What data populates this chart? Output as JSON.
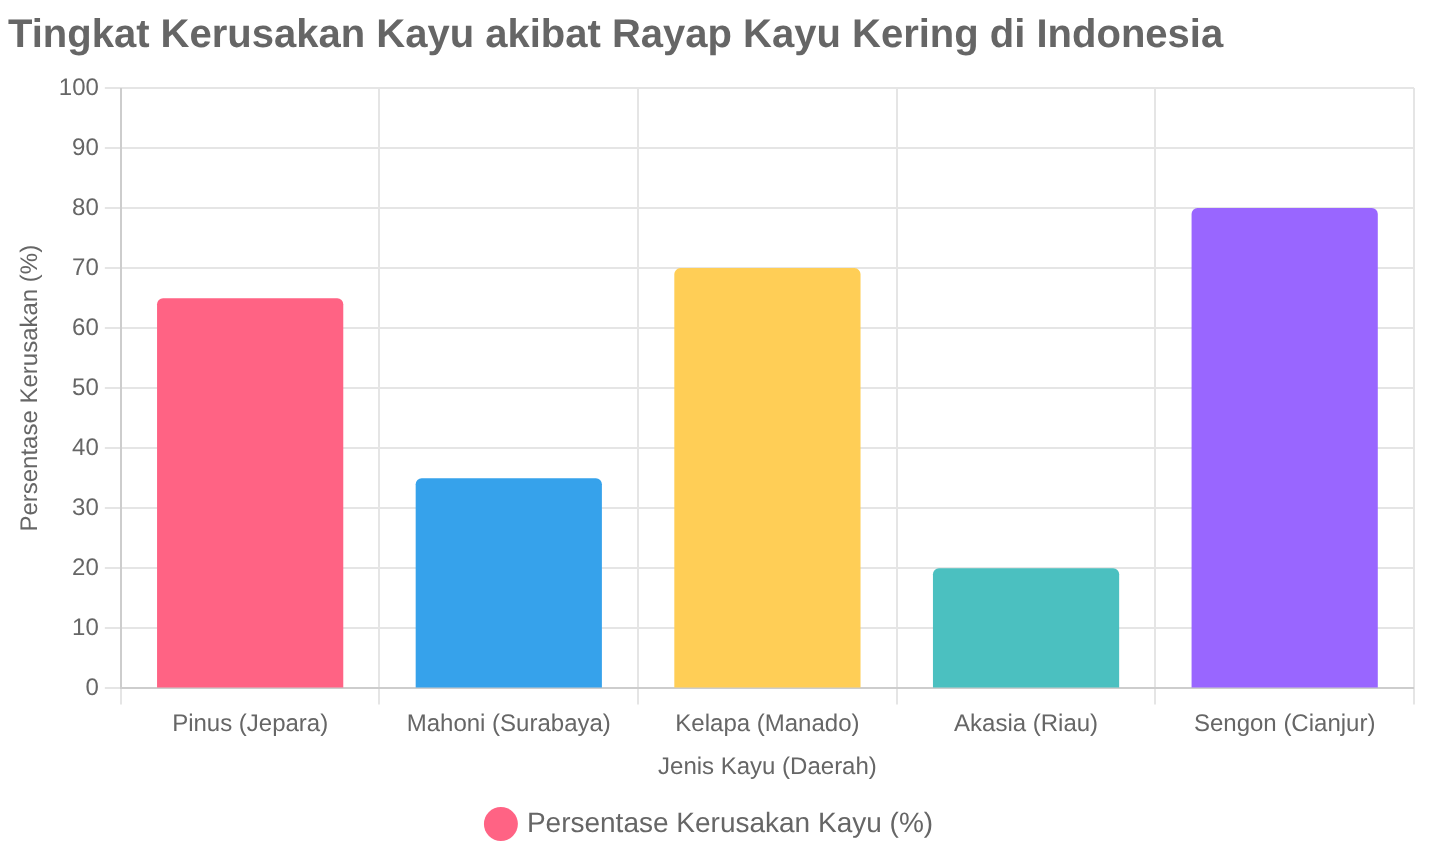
{
  "chart_data": {
    "type": "bar",
    "title": "Tingkat Kerusakan Kayu akibat Rayap Kayu Kering di Indonesia",
    "xlabel": "Jenis Kayu (Daerah)",
    "ylabel": "Persentase Kerusakan (%)",
    "categories": [
      "Pinus (Jepara)",
      "Mahoni (Surabaya)",
      "Kelapa (Manado)",
      "Akasia (Riau)",
      "Sengon (Cianjur)"
    ],
    "series": [
      {
        "name": "Persentase Kerusakan Kayu (%)",
        "colors": [
          "#ff6384",
          "#36a2eb",
          "#ffce56",
          "#4bc0c0",
          "#9966ff"
        ],
        "values": [
          65,
          35,
          70,
          20,
          80
        ]
      }
    ],
    "ylim": [
      0,
      100
    ],
    "yticks": [
      0,
      10,
      20,
      30,
      40,
      50,
      60,
      70,
      80,
      90,
      100
    ],
    "grid": true,
    "legend": "bottom"
  }
}
